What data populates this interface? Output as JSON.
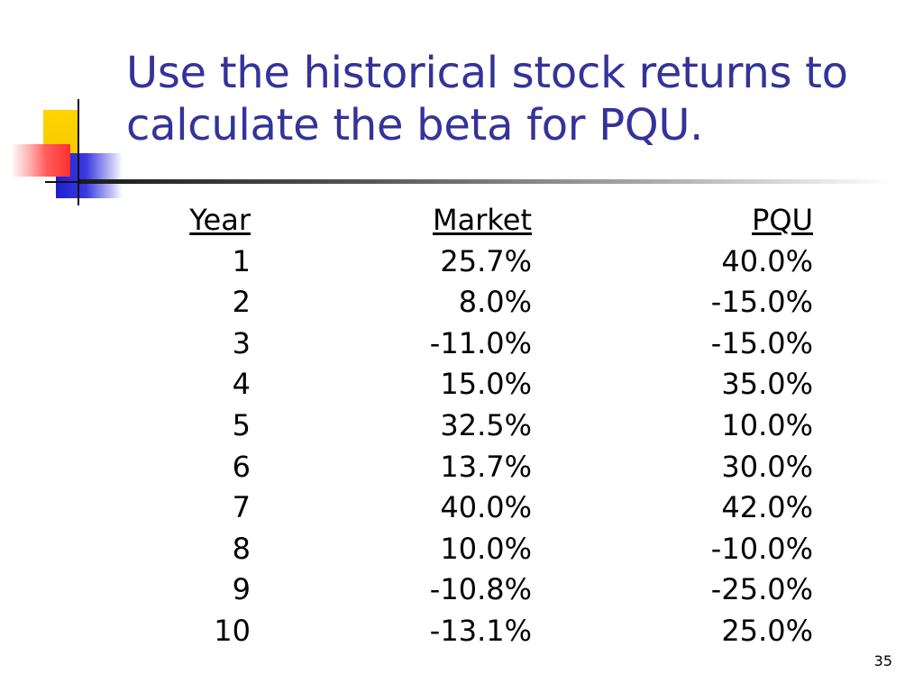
{
  "slide": {
    "title_line1": "Use the historical stock returns to",
    "title_line2": "calculate the beta for PQU.",
    "page_number": "35"
  },
  "table": {
    "headers": {
      "year": "Year",
      "market": "Market",
      "pqu": "PQU"
    },
    "rows": [
      {
        "year": "1",
        "market": "25.7%",
        "pqu": "40.0%"
      },
      {
        "year": "2",
        "market": "8.0%",
        "pqu": "-15.0%"
      },
      {
        "year": "3",
        "market": "-11.0%",
        "pqu": "-15.0%"
      },
      {
        "year": "4",
        "market": "15.0%",
        "pqu": "35.0%"
      },
      {
        "year": "5",
        "market": "32.5%",
        "pqu": "10.0%"
      },
      {
        "year": "6",
        "market": "13.7%",
        "pqu": "30.0%"
      },
      {
        "year": "7",
        "market": "40.0%",
        "pqu": "42.0%"
      },
      {
        "year": "8",
        "market": "10.0%",
        "pqu": "-10.0%"
      },
      {
        "year": "9",
        "market": "-10.8%",
        "pqu": "-25.0%"
      },
      {
        "year": "10",
        "market": "-13.1%",
        "pqu": "25.0%"
      }
    ]
  },
  "colors": {
    "title": "#333399",
    "accent_yellow": "#ffd400",
    "accent_blue": "#1e1ed2",
    "accent_red": "#ff3030"
  }
}
